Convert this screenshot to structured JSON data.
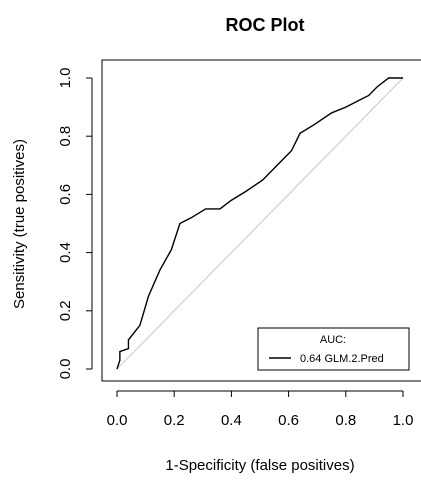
{
  "chart_data": {
    "type": "line",
    "title": "ROC Plot",
    "xlabel": "1-Specificity (false positives)",
    "ylabel": "Sensitivity (true positives)",
    "xlim": [
      0,
      1
    ],
    "ylim": [
      0,
      1
    ],
    "x_ticks": [
      0.0,
      0.2,
      0.4,
      0.6,
      0.8,
      1.0
    ],
    "y_ticks": [
      0.0,
      0.2,
      0.4,
      0.6,
      0.8,
      1.0
    ],
    "x_tick_labels": [
      "0.0",
      "0.2",
      "0.4",
      "0.6",
      "0.8",
      "1.0"
    ],
    "y_tick_labels": [
      "0.0",
      "0.2",
      "0.4",
      "0.6",
      "0.8",
      "1.0"
    ],
    "grid": false,
    "reference_line": {
      "x": [
        0,
        1
      ],
      "y": [
        0,
        1
      ],
      "color": "#cfcfcf"
    },
    "series": [
      {
        "name": "0.64 GLM.2.Pred",
        "color": "#000000",
        "x": [
          0.0,
          0.01,
          0.01,
          0.04,
          0.04,
          0.08,
          0.11,
          0.15,
          0.19,
          0.22,
          0.26,
          0.31,
          0.36,
          0.4,
          0.45,
          0.51,
          0.56,
          0.61,
          0.64,
          0.69,
          0.75,
          0.8,
          0.84,
          0.88,
          0.91,
          0.95,
          1.0
        ],
        "y": [
          0.0,
          0.03,
          0.06,
          0.07,
          0.1,
          0.15,
          0.25,
          0.34,
          0.41,
          0.5,
          0.52,
          0.55,
          0.55,
          0.58,
          0.61,
          0.65,
          0.7,
          0.75,
          0.81,
          0.84,
          0.88,
          0.9,
          0.92,
          0.94,
          0.97,
          1.0,
          1.0
        ]
      }
    ],
    "legend": {
      "title": "AUC:",
      "position": "bottom-right"
    }
  }
}
